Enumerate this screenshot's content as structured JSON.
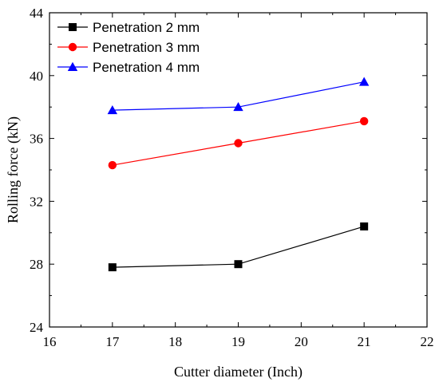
{
  "chart_data": {
    "type": "line",
    "xlabel": "Cutter diameter (Inch)",
    "ylabel": "Rolling force (kN)",
    "xlim": [
      16,
      22
    ],
    "ylim": [
      24,
      44
    ],
    "x_ticks": [
      16,
      17,
      18,
      19,
      20,
      21,
      22
    ],
    "y_ticks": [
      24,
      28,
      32,
      36,
      40,
      44
    ],
    "grid": false,
    "legend_position": "top-left",
    "x": [
      17,
      19,
      21
    ],
    "series": [
      {
        "name": "Penetration 2 mm",
        "values": [
          27.8,
          28.0,
          30.4
        ],
        "color": "#000000",
        "marker": "square"
      },
      {
        "name": "Penetration 3 mm",
        "values": [
          34.3,
          35.7,
          37.1
        ],
        "color": "#ff0000",
        "marker": "circle"
      },
      {
        "name": "Penetration 4 mm",
        "values": [
          37.8,
          38.0,
          39.6
        ],
        "color": "#0000ff",
        "marker": "triangle"
      }
    ]
  }
}
